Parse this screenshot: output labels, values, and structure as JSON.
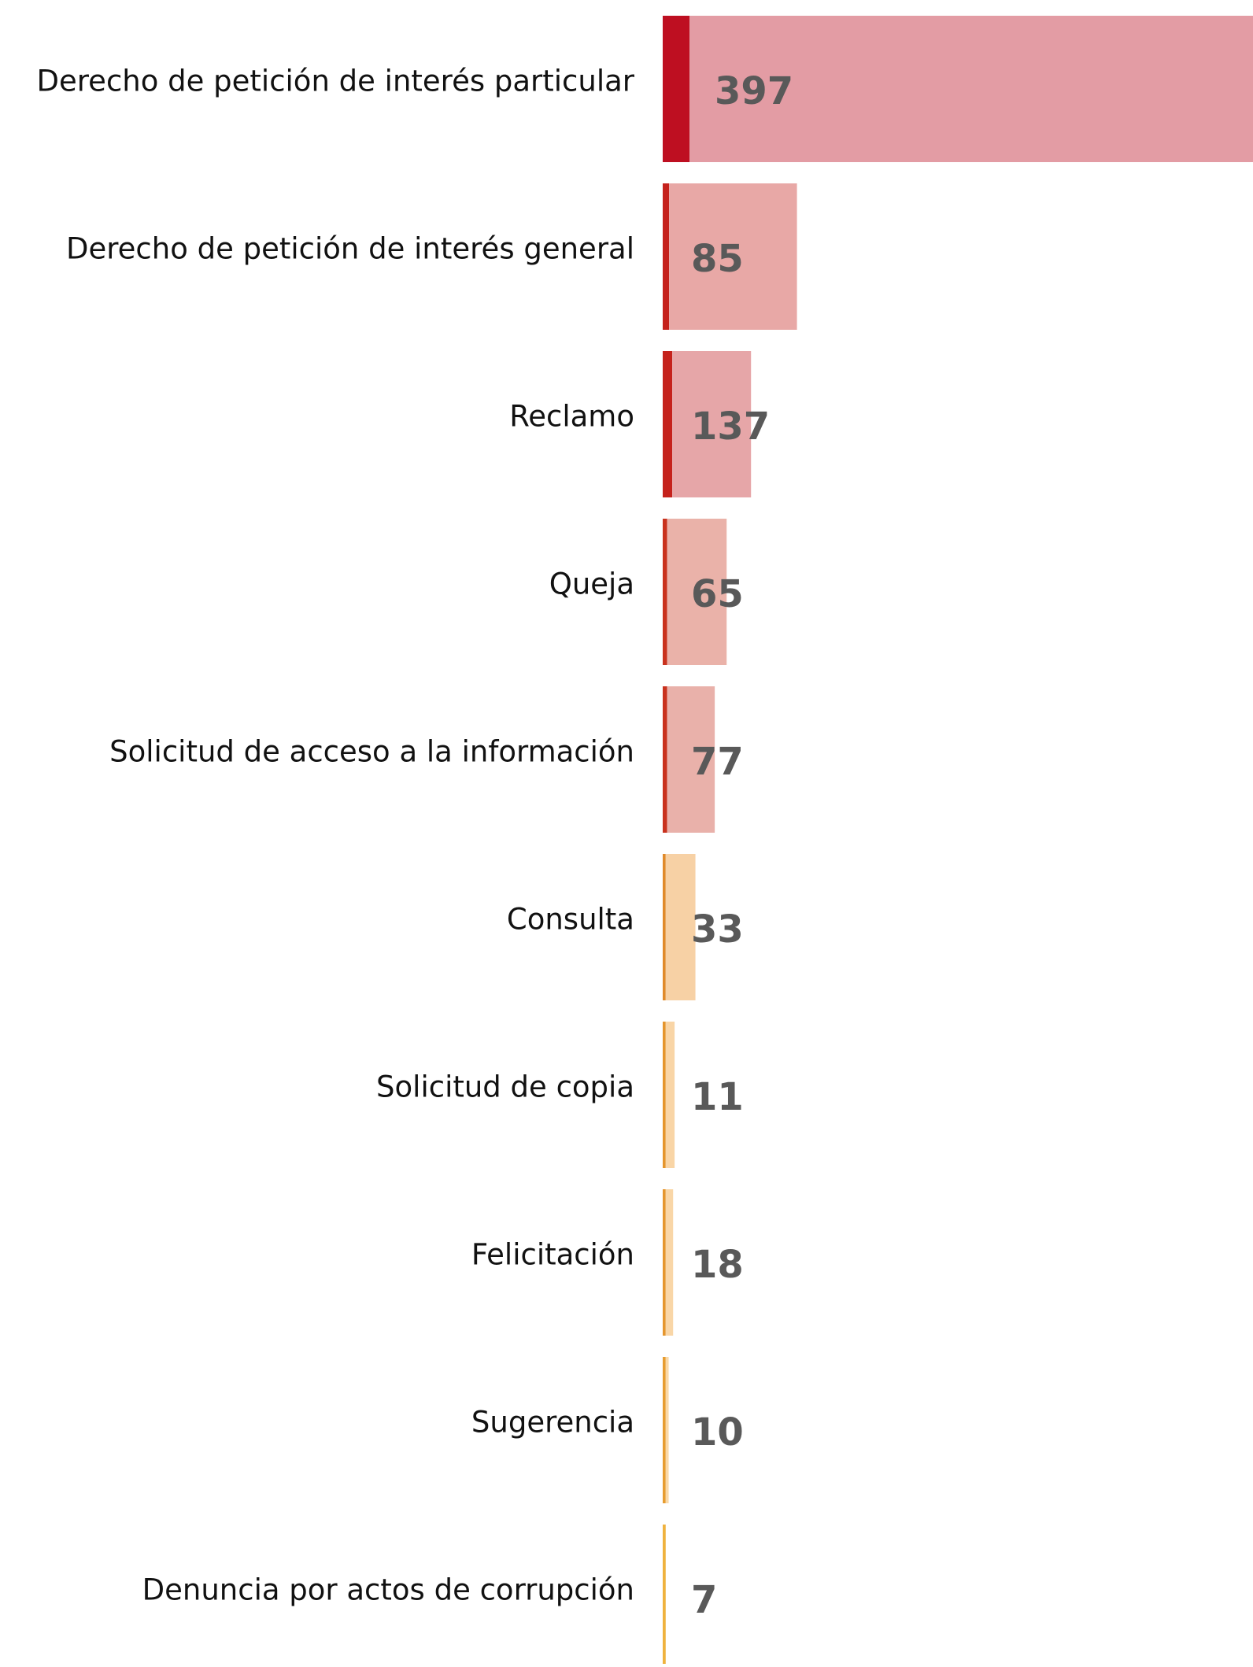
{
  "chart_data": {
    "type": "stacked_bar_horizontal",
    "categories": [
      "Derecho de petición de interés particular",
      "Derecho de petición de interés general",
      "Reclamo",
      "Queja",
      "Solicitud de acceso a la información",
      "Consulta",
      "Solicitud de copia",
      "Felicitación",
      "Sugerencia",
      "Denuncia por actos de corrupción"
    ],
    "values": [
      397,
      85,
      137,
      65,
      77,
      33,
      11,
      18,
      10,
      7
    ],
    "xlim": [
      0,
      397
    ],
    "series": [
      {
        "colors": [
          "#be0f21",
          "#c5221c",
          "#c5221c",
          "#c9321e",
          "#c9321e",
          "#e08a2a",
          "#e5952c",
          "#e5962e",
          "#e79d30",
          "#efb23e"
        ],
        "values": [
          18,
          4.3,
          6.4,
          3,
          3,
          2,
          2,
          2,
          2,
          2
        ]
      },
      {
        "colors": [
          "#e39ca4",
          "#e8a8a6",
          "#e6a6a8",
          "#eab2a9",
          "#e9b1aa",
          "#f7d1a5",
          "#f9d5a6",
          "#f9d6a7",
          "#fad9a8",
          "#fbe0ad"
        ],
        "values": [
          379,
          86,
          53,
          40,
          32,
          20,
          6,
          5,
          2,
          0
        ]
      }
    ]
  }
}
